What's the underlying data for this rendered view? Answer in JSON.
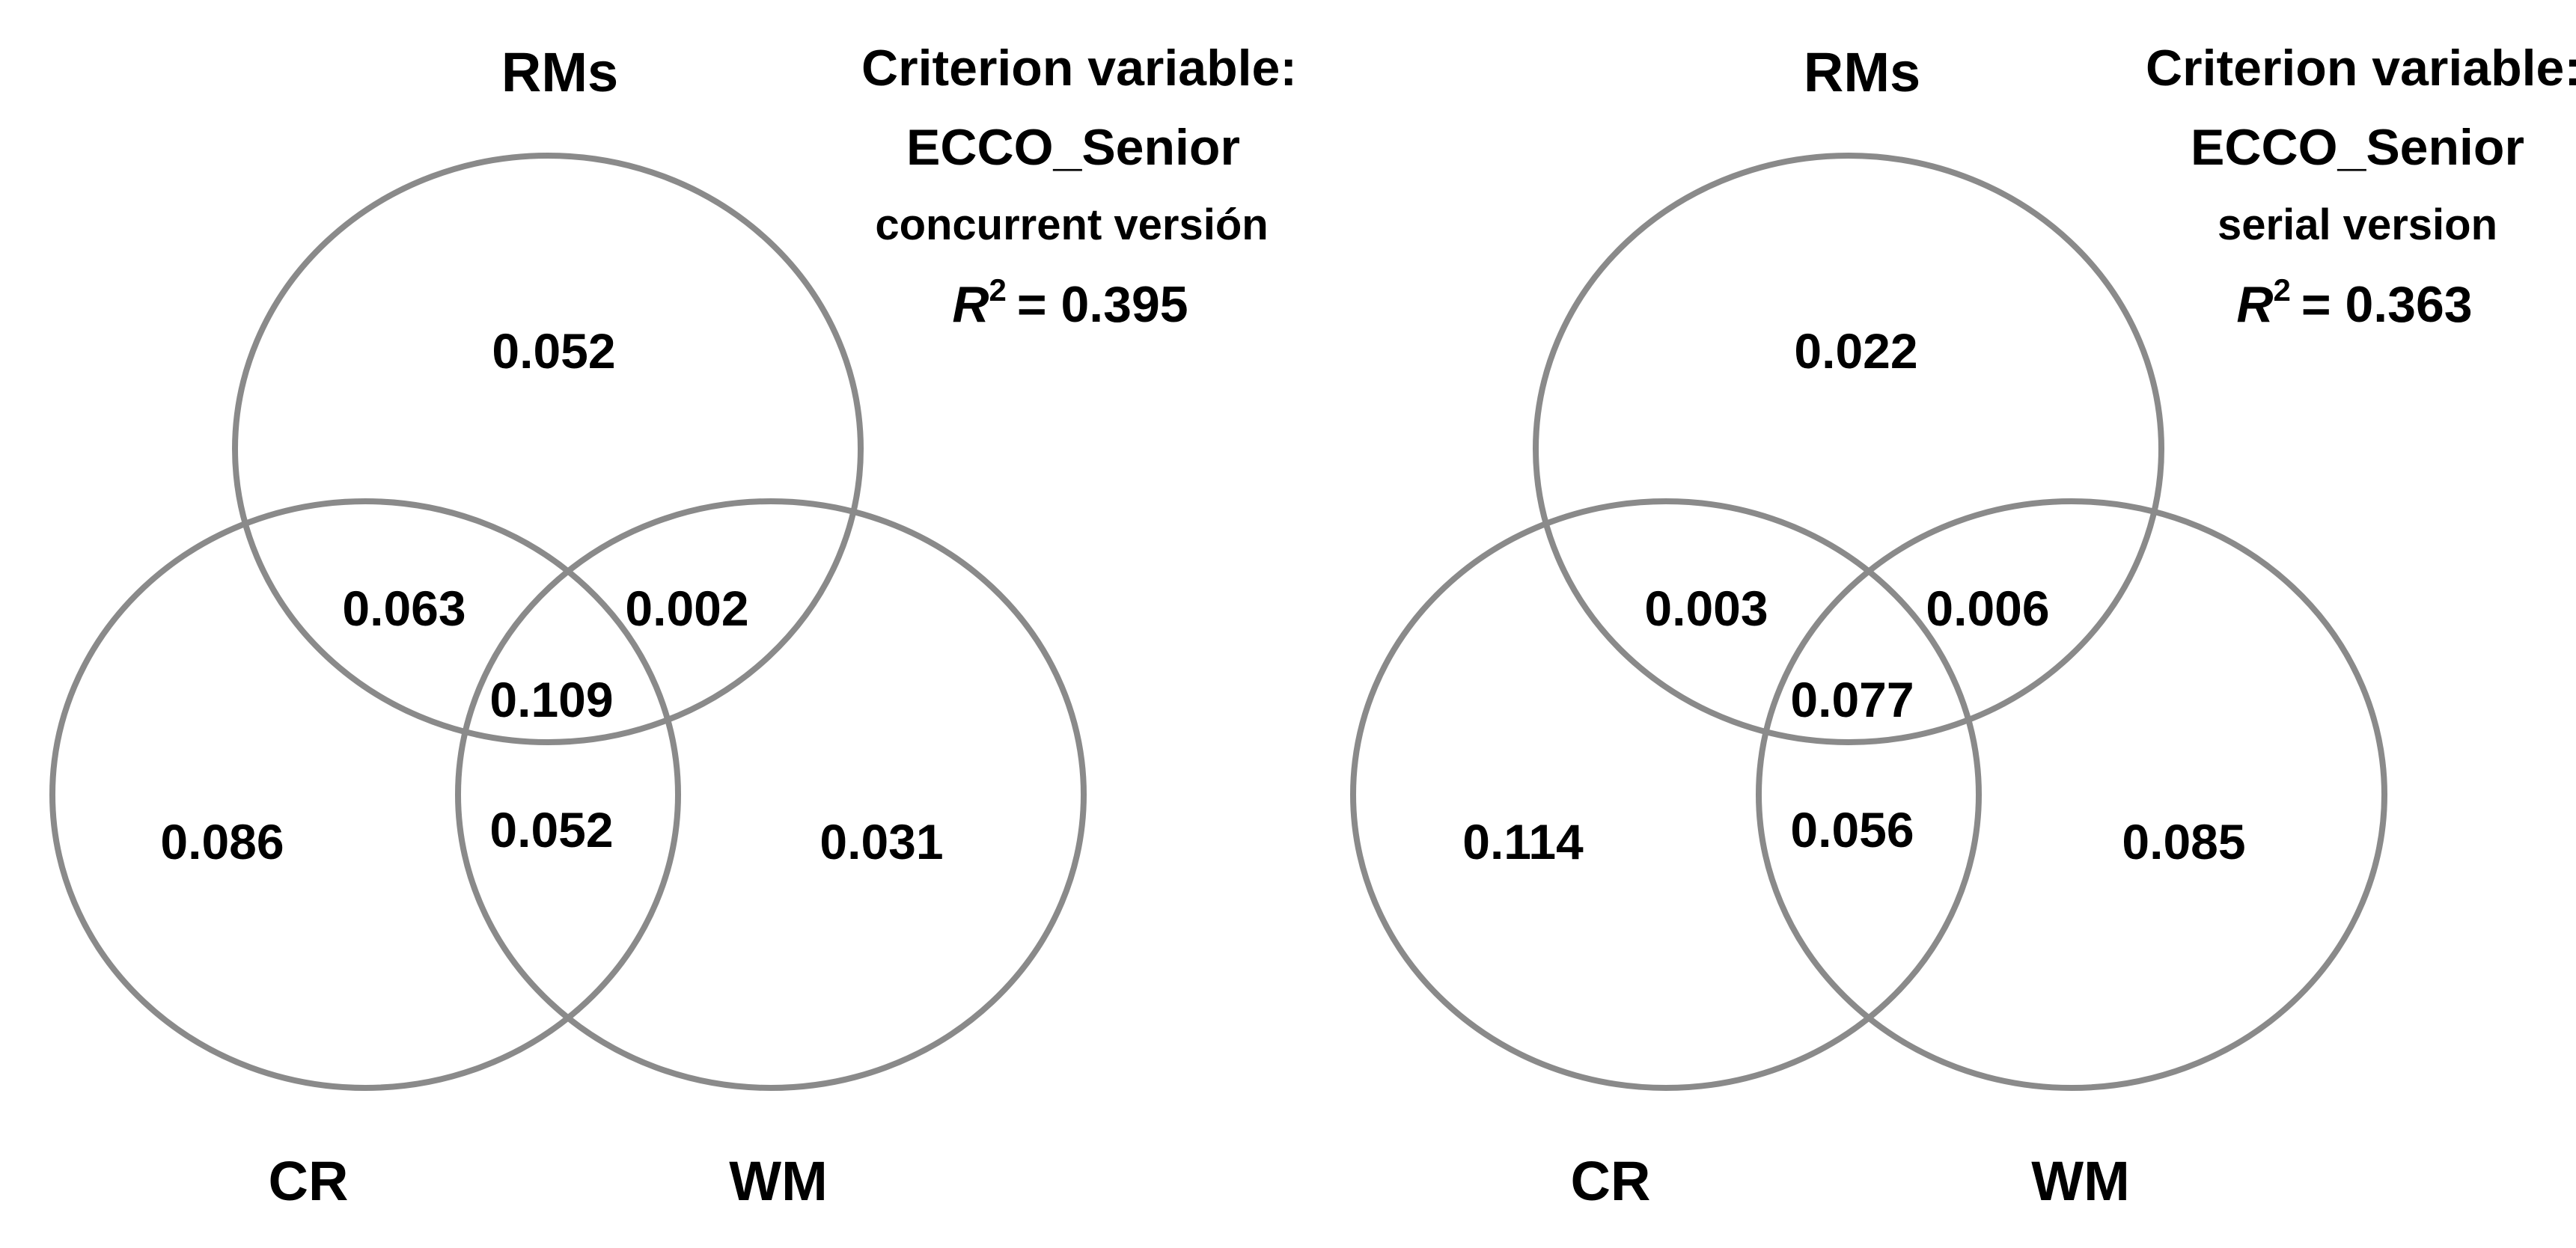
{
  "panels": [
    {
      "criterion": {
        "line1": "Criterion variable:",
        "line2": "ECCO_Senior",
        "line3": "concurrent versión",
        "r2_symbol": "R",
        "r2_exp": "2",
        "r2_value": "= 0.395"
      },
      "sets": {
        "top": "RMs",
        "left": "CR",
        "right": "WM"
      },
      "regions": {
        "rms_only": "0.052",
        "cr_only": "0.086",
        "wm_only": "0.031",
        "rms_cr": "0.063",
        "rms_wm": "0.002",
        "cr_wm": "0.052",
        "all": "0.109"
      }
    },
    {
      "criterion": {
        "line1": "Criterion variable:",
        "line2": "ECCO_Senior",
        "line3": "serial version",
        "r2_symbol": "R",
        "r2_exp": "2",
        "r2_value": "= 0.363"
      },
      "sets": {
        "top": "RMs",
        "left": "CR",
        "right": "WM"
      },
      "regions": {
        "rms_only": "0.022",
        "cr_only": "0.114",
        "wm_only": "0.085",
        "rms_cr": "0.003",
        "rms_wm": "0.006",
        "cr_wm": "0.056",
        "all": "0.077"
      }
    }
  ],
  "colors": {
    "circle_stroke": "#8a8a8a",
    "text": "#000000"
  }
}
